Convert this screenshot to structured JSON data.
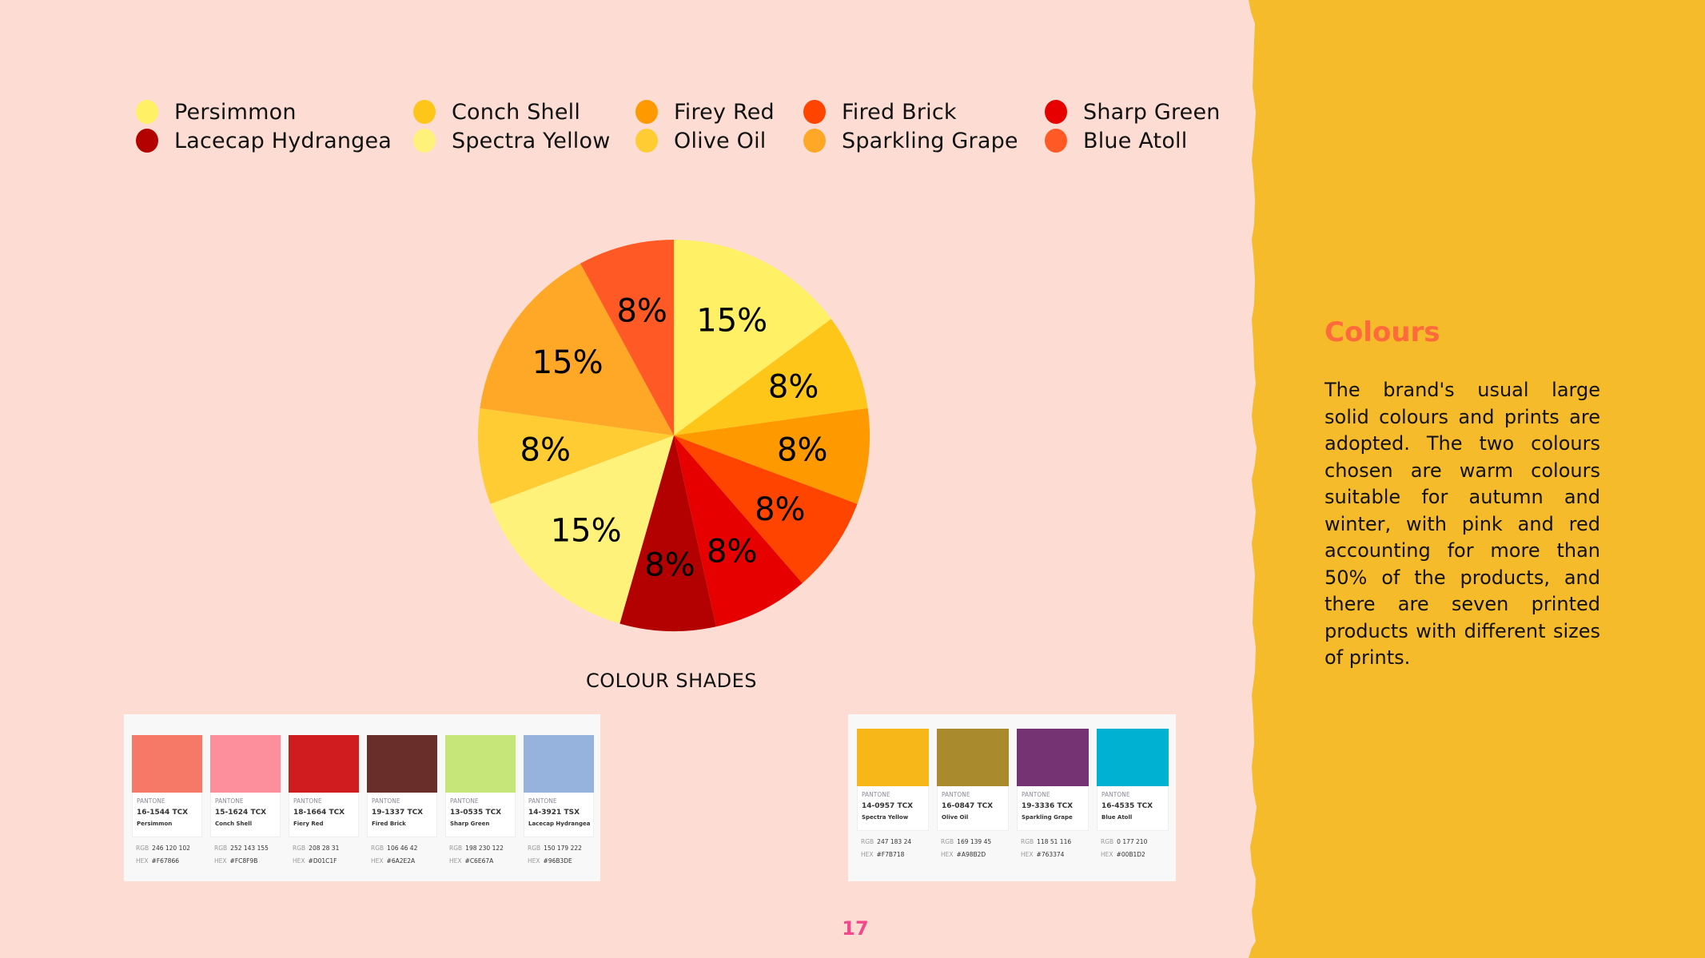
{
  "legend": [
    {
      "label": "Persimmon",
      "color": "#FFF066"
    },
    {
      "label": "Lacecap Hydrangea",
      "color": "#B30000"
    },
    {
      "label": "Conch Shell",
      "color": "#FFC61A"
    },
    {
      "label": "Spectra Yellow",
      "color": "#FFF27A"
    },
    {
      "label": "Firey Red",
      "color": "#FF9900"
    },
    {
      "label": "Olive Oil",
      "color": "#FFCC33"
    },
    {
      "label": "Fired Brick",
      "color": "#FF4400"
    },
    {
      "label": "Sparkling Grape",
      "color": "#FFA726"
    },
    {
      "label": "Sharp Green",
      "color": "#E60000"
    },
    {
      "label": "Blue Atoll",
      "color": "#FF5A26"
    }
  ],
  "chart_data": {
    "type": "pie",
    "title": "",
    "categories": [
      "Persimmon",
      "Conch Shell",
      "Firey Red",
      "Fired Brick",
      "Sharp Green",
      "Lacecap Hydrangea",
      "Spectra Yellow",
      "Olive Oil",
      "Sparkling Grape",
      "Blue Atoll"
    ],
    "values": [
      15,
      8,
      8,
      8,
      8,
      8,
      15,
      8,
      15,
      8
    ],
    "labels": [
      "15%",
      "8%",
      "8%",
      "8%",
      "8%",
      "8%",
      "15%",
      "8%",
      "15%",
      "8%"
    ],
    "colors": [
      "#FFF066",
      "#FFC61A",
      "#FF9900",
      "#FF4400",
      "#E60000",
      "#B30000",
      "#FFF27A",
      "#FFCC33",
      "#FFA726",
      "#FF5A26"
    ],
    "start": "top",
    "direction": "clockwise",
    "legend_position": "top"
  },
  "shades": {
    "title": "COLOUR SHADES",
    "left": [
      {
        "color": "#F67866",
        "pantone_label": "PANTONE",
        "code": "16-1544 TCX",
        "name": "Persimmon",
        "rgb_label": "RGB",
        "rgb": "246 120 102",
        "hex_label": "HEX",
        "hex": "#F67866"
      },
      {
        "color": "#FC8F9B",
        "pantone_label": "PANTONE",
        "code": "15-1624 TCX",
        "name": "Conch Shell",
        "rgb_label": "RGB",
        "rgb": "252 143 155",
        "hex_label": "HEX",
        "hex": "#FC8F9B"
      },
      {
        "color": "#D01C1F",
        "pantone_label": "PANTONE",
        "code": "18-1664 TCX",
        "name": "Fiery Red",
        "rgb_label": "RGB",
        "rgb": "208 28 31",
        "hex_label": "HEX",
        "hex": "#D01C1F"
      },
      {
        "color": "#6A2E2A",
        "pantone_label": "PANTONE",
        "code": "19-1337 TCX",
        "name": "Fired Brick",
        "rgb_label": "RGB",
        "rgb": "106 46 42",
        "hex_label": "HEX",
        "hex": "#6A2E2A"
      },
      {
        "color": "#C6E67A",
        "pantone_label": "PANTONE",
        "code": "13-0535 TCX",
        "name": "Sharp Green",
        "rgb_label": "RGB",
        "rgb": "198 230 122",
        "hex_label": "HEX",
        "hex": "#C6E67A"
      },
      {
        "color": "#96B3DE",
        "pantone_label": "PANTONE",
        "code": "14-3921 TSX",
        "name": "Lacecap Hydrangea",
        "rgb_label": "RGB",
        "rgb": "150 179 222",
        "hex_label": "HEX",
        "hex": "#96B3DE"
      }
    ],
    "right": [
      {
        "color": "#F7B718",
        "pantone_label": "PANTONE",
        "code": "14-0957 TCX",
        "name": "Spectra Yellow",
        "rgb_label": "RGB",
        "rgb": "247 183 24",
        "hex_label": "HEX",
        "hex": "#F7B718"
      },
      {
        "color": "#A98B2D",
        "pantone_label": "PANTONE",
        "code": "16-0847 TCX",
        "name": "Olive Oil",
        "rgb_label": "RGB",
        "rgb": "169 139 45",
        "hex_label": "HEX",
        "hex": "#A98B2D"
      },
      {
        "color": "#763374",
        "pantone_label": "PANTONE",
        "code": "19-3336 TCX",
        "name": "Sparkling Grape",
        "rgb_label": "RGB",
        "rgb": "118 51 116",
        "hex_label": "HEX",
        "hex": "#763374"
      },
      {
        "color": "#00B1D2",
        "pantone_label": "PANTONE",
        "code": "16-4535 TCX",
        "name": "Blue Atoll",
        "rgb_label": "RGB",
        "rgb": "0 177 210",
        "hex_label": "HEX",
        "hex": "#00B1D2"
      }
    ]
  },
  "side": {
    "title": "Colours",
    "body": "The brand's usual large solid colours and prints are adopted. The two colours chosen are warm colours suitable for autumn and winter, with pink and red accounting for more than 50% of the products, and there are seven printed products with different sizes of prints.",
    "background": "#F6BB2A"
  },
  "page_number": "17"
}
